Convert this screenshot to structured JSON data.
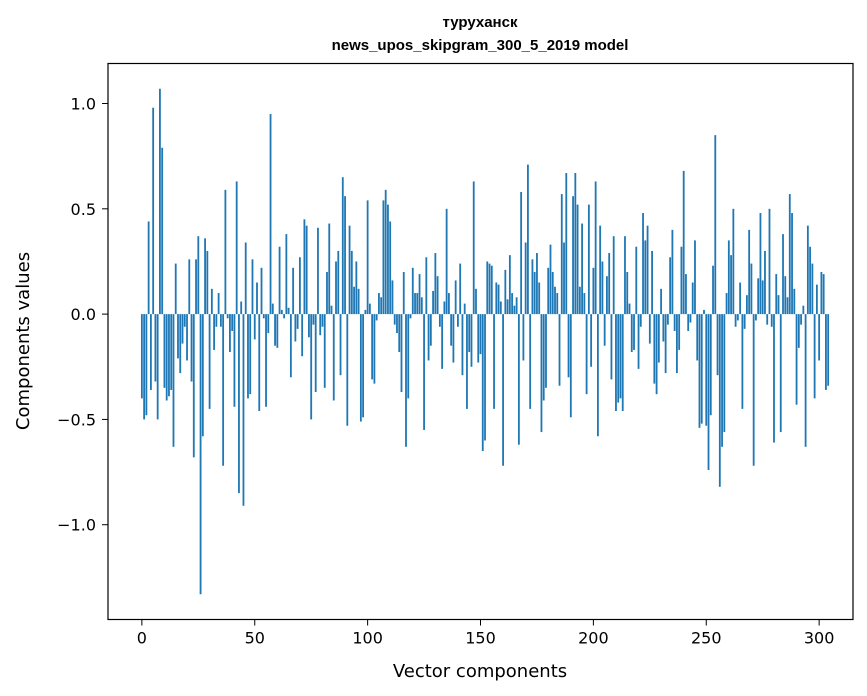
{
  "chart_data": {
    "type": "bar",
    "title": "туруханск",
    "subtitle": "news_upos_skipgram_300_5_2019 model",
    "xlabel": "Vector components",
    "ylabel": "Components values",
    "xlim": [
      -15,
      315
    ],
    "ylim": [
      -1.45,
      1.19
    ],
    "xticks": [
      0,
      50,
      100,
      150,
      200,
      250,
      300
    ],
    "xtick_labels": [
      "0",
      "50",
      "100",
      "150",
      "200",
      "250",
      "300"
    ],
    "yticks": [
      1.0,
      0.5,
      0.0,
      -0.5,
      -1.0
    ],
    "ytick_labels": [
      "1.0",
      "0.5",
      "0.0",
      "−0.5",
      "−1.0"
    ],
    "bar_color": "#1f77b4",
    "series": [
      {
        "name": "components",
        "values": [
          -0.4,
          -0.5,
          -0.48,
          0.44,
          -0.36,
          0.98,
          -0.32,
          -0.5,
          1.07,
          0.79,
          -0.35,
          -0.41,
          -0.39,
          -0.36,
          -0.63,
          0.24,
          -0.21,
          -0.28,
          -0.14,
          -0.06,
          -0.22,
          0.26,
          -0.32,
          -0.68,
          0.26,
          0.37,
          -1.33,
          -0.58,
          0.36,
          0.3,
          -0.45,
          0.12,
          -0.17,
          -0.06,
          0.1,
          -0.06,
          -0.72,
          0.59,
          -0.02,
          -0.18,
          -0.08,
          -0.44,
          0.63,
          -0.85,
          0.06,
          -0.91,
          0.34,
          -0.4,
          -0.38,
          0.26,
          -0.12,
          0.15,
          -0.46,
          0.22,
          -0.02,
          -0.44,
          -0.09,
          0.95,
          0.05,
          -0.15,
          -0.16,
          0.32,
          0.02,
          -0.02,
          0.38,
          0.03,
          -0.3,
          0.22,
          -0.13,
          -0.07,
          0.27,
          -0.2,
          0.45,
          0.42,
          -0.11,
          -0.5,
          -0.05,
          -0.37,
          0.41,
          -0.1,
          -0.06,
          -0.35,
          0.2,
          0.43,
          0.04,
          -0.41,
          0.25,
          0.3,
          -0.29,
          0.65,
          0.56,
          -0.53,
          0.42,
          0.3,
          0.13,
          0.25,
          0.12,
          -0.51,
          -0.49,
          0.02,
          0.54,
          0.05,
          -0.31,
          -0.33,
          -0.03,
          0.1,
          0.08,
          0.54,
          0.59,
          0.52,
          0.44,
          0.16,
          -0.05,
          -0.09,
          -0.18,
          -0.37,
          0.2,
          -0.63,
          -0.4,
          -0.02,
          0.22,
          0.1,
          0.1,
          0.19,
          0.08,
          -0.55,
          0.27,
          -0.22,
          -0.15,
          0.11,
          0.29,
          0.18,
          -0.06,
          -0.26,
          0.06,
          0.5,
          0.1,
          -0.15,
          -0.23,
          0.16,
          -0.06,
          0.24,
          -0.29,
          0.05,
          -0.45,
          -0.18,
          -0.25,
          0.63,
          0.12,
          -0.23,
          -0.19,
          -0.65,
          -0.6,
          0.25,
          0.24,
          0.23,
          -0.45,
          0.15,
          0.14,
          0.06,
          -0.72,
          0.21,
          0.07,
          0.28,
          0.1,
          0.04,
          0.08,
          -0.62,
          0.58,
          -0.22,
          0.34,
          0.71,
          -0.45,
          0.26,
          0.2,
          0.29,
          0.15,
          -0.56,
          -0.41,
          -0.35,
          0.22,
          0.33,
          0.2,
          0.13,
          0.1,
          -0.34,
          0.57,
          0.34,
          0.67,
          -0.3,
          -0.49,
          0.56,
          0.67,
          0.52,
          0.13,
          0.43,
          0.1,
          -0.38,
          0.52,
          -0.25,
          0.22,
          0.63,
          -0.58,
          0.42,
          0.25,
          -0.15,
          0.18,
          0.29,
          -0.31,
          0.37,
          -0.46,
          -0.42,
          -0.4,
          -0.46,
          0.37,
          0.2,
          0.05,
          -0.18,
          -0.17,
          0.32,
          -0.26,
          -0.06,
          0.48,
          0.35,
          0.42,
          -0.14,
          0.3,
          -0.33,
          -0.38,
          -0.23,
          0.12,
          -0.13,
          -0.28,
          -0.05,
          0.27,
          0.4,
          -0.08,
          -0.28,
          -0.17,
          0.32,
          0.68,
          0.19,
          -0.08,
          -0.04,
          0.15,
          0.35,
          -0.22,
          -0.54,
          -0.52,
          0.02,
          -0.53,
          -0.74,
          -0.48,
          0.23,
          0.85,
          -0.29,
          -0.82,
          -0.63,
          -0.56,
          0.1,
          0.35,
          0.28,
          0.5,
          -0.06,
          -0.03,
          0.15,
          -0.45,
          -0.07,
          0.09,
          0.4,
          0.24,
          -0.72,
          -0.03,
          0.17,
          0.48,
          0.16,
          0.3,
          -0.05,
          0.5,
          -0.06,
          -0.61,
          0.19,
          0.09,
          -0.56,
          0.38,
          0.18,
          0.08,
          0.57,
          0.48,
          0.12,
          -0.43,
          -0.16,
          -0.05,
          0.04,
          -0.63,
          0.42,
          0.32,
          0.24,
          -0.4,
          0.14,
          -0.22,
          0.2,
          0.19,
          -0.36,
          -0.34
        ]
      }
    ]
  }
}
